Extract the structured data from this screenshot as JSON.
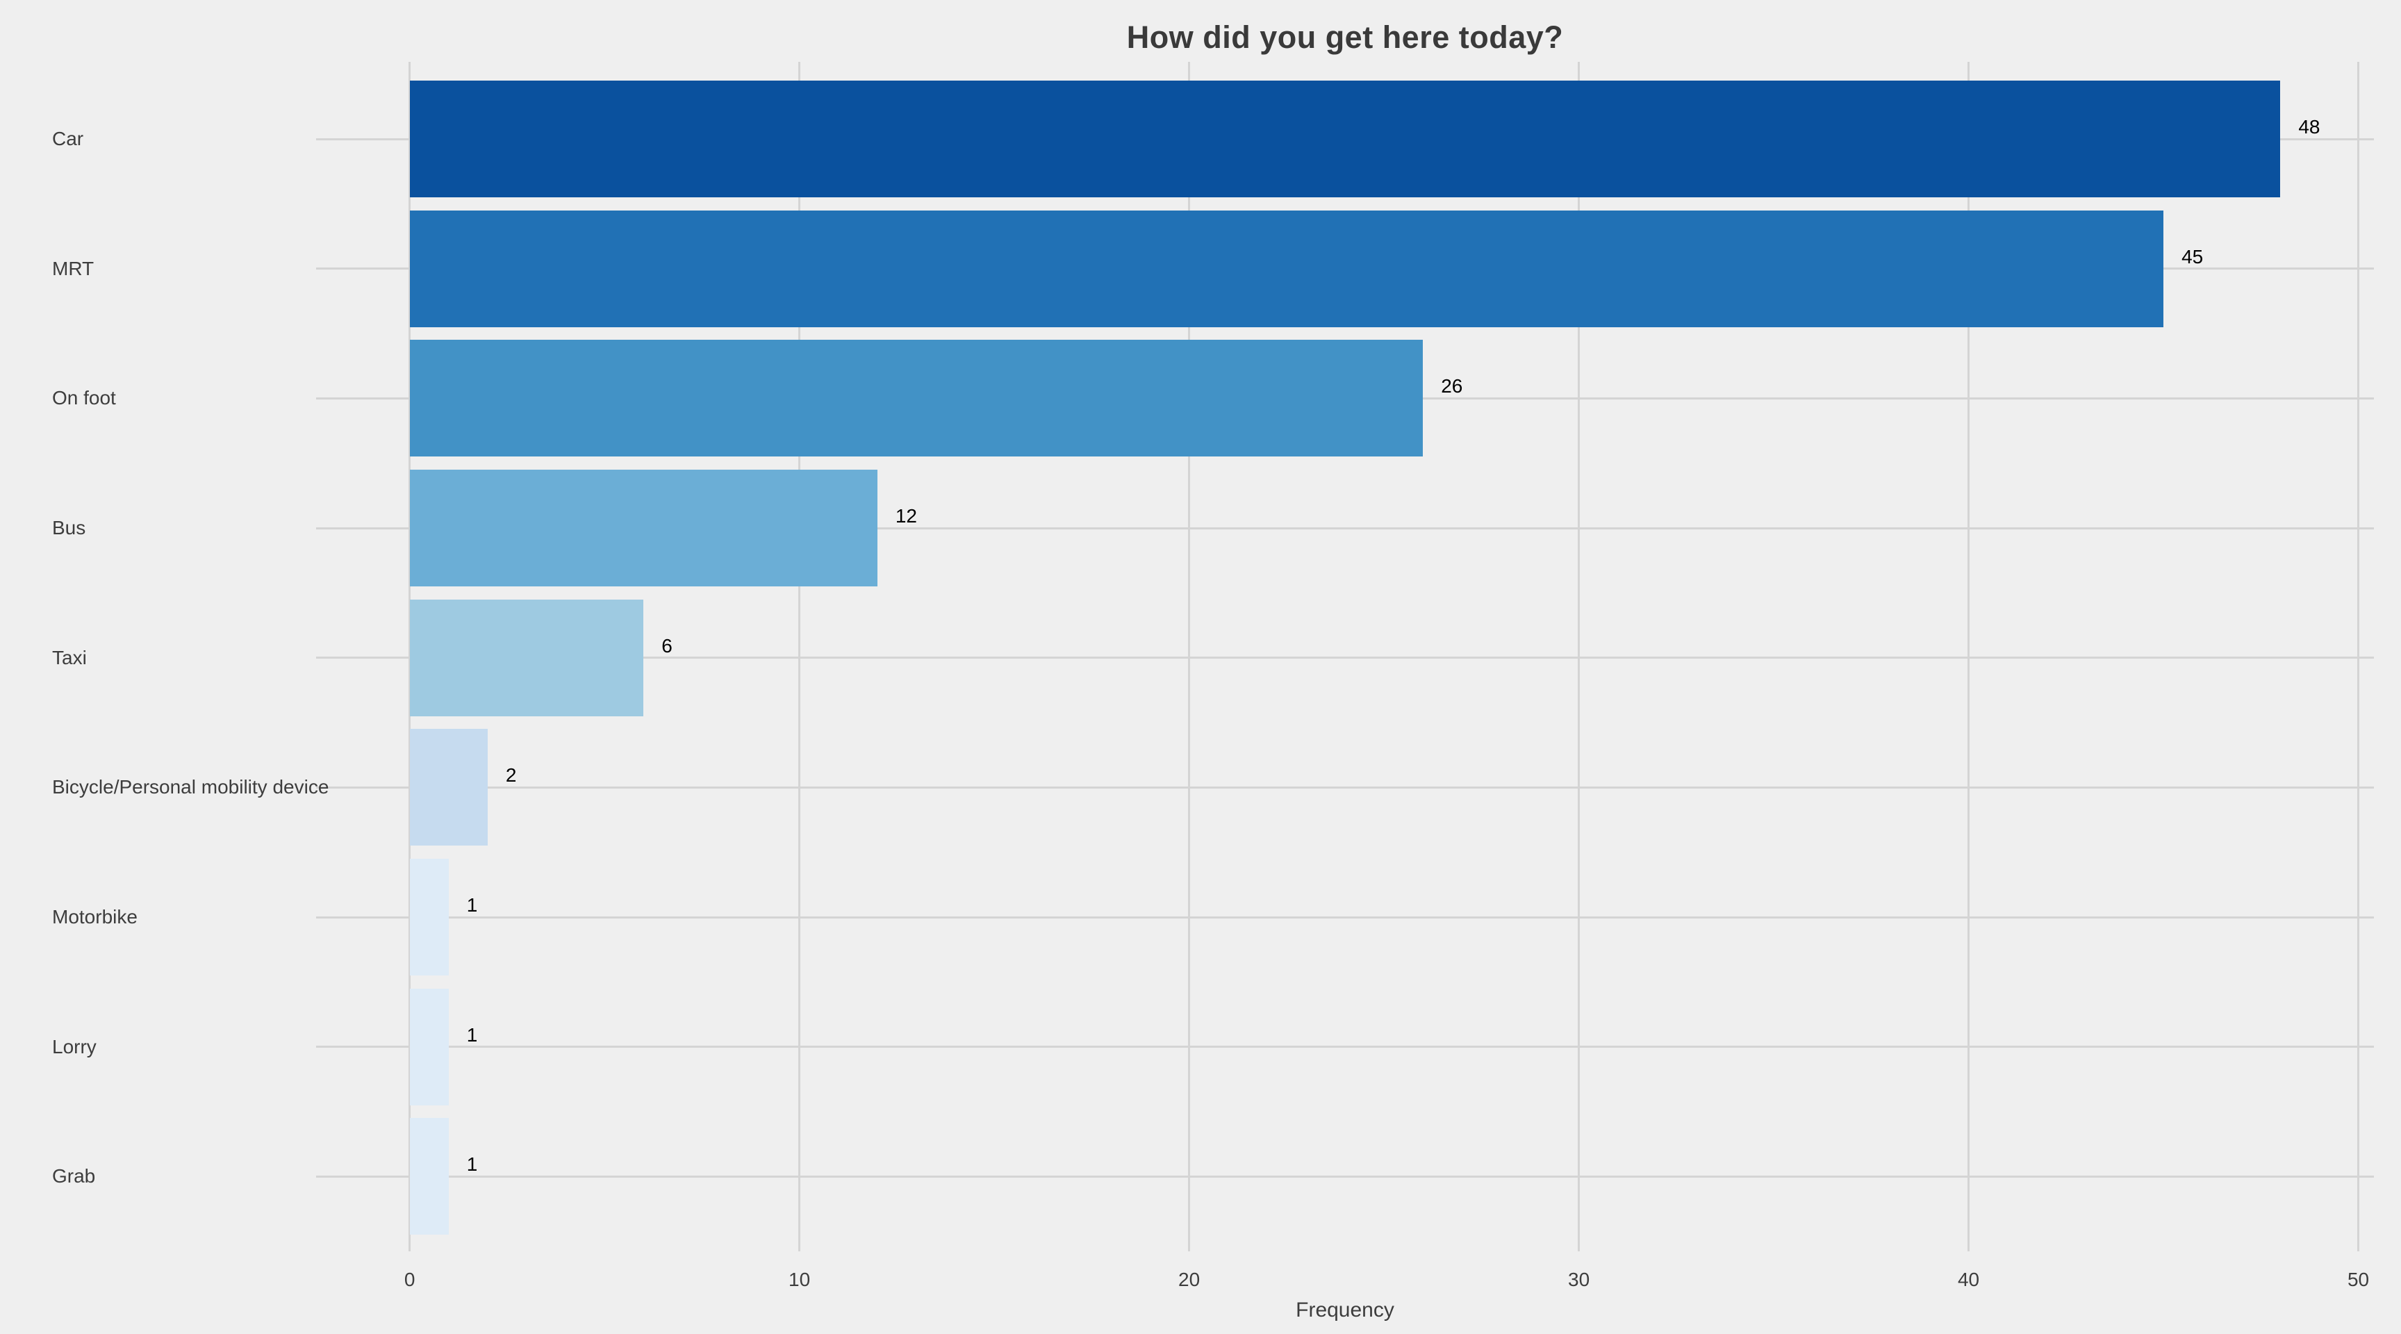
{
  "chart_data": {
    "type": "bar",
    "orientation": "horizontal",
    "title": "How did you get here today?",
    "xlabel": "Frequency",
    "ylabel": "",
    "categories": [
      "Car",
      "MRT",
      "On foot",
      "Bus",
      "Taxi",
      "Bicycle/Personal mobility device",
      "Motorbike",
      "Lorry",
      "Grab"
    ],
    "values": [
      48,
      45,
      26,
      12,
      6,
      2,
      1,
      1,
      1
    ],
    "bar_colors": [
      "#0a519e",
      "#2171b5",
      "#4292c6",
      "#6baed6",
      "#9ecae1",
      "#c6dbef",
      "#deebf7",
      "#deebf7",
      "#deebf7"
    ],
    "x_ticks": [
      0,
      10,
      20,
      30,
      40,
      50
    ],
    "xlim": [
      -2.4,
      50.4
    ],
    "grid": true,
    "legend": false,
    "colors": {
      "background": "#efefef",
      "gridline": "#d4d4d4",
      "axis_text": "#3d3d3d",
      "value_label": "#000000",
      "title_text": "#3a3a3a"
    }
  }
}
